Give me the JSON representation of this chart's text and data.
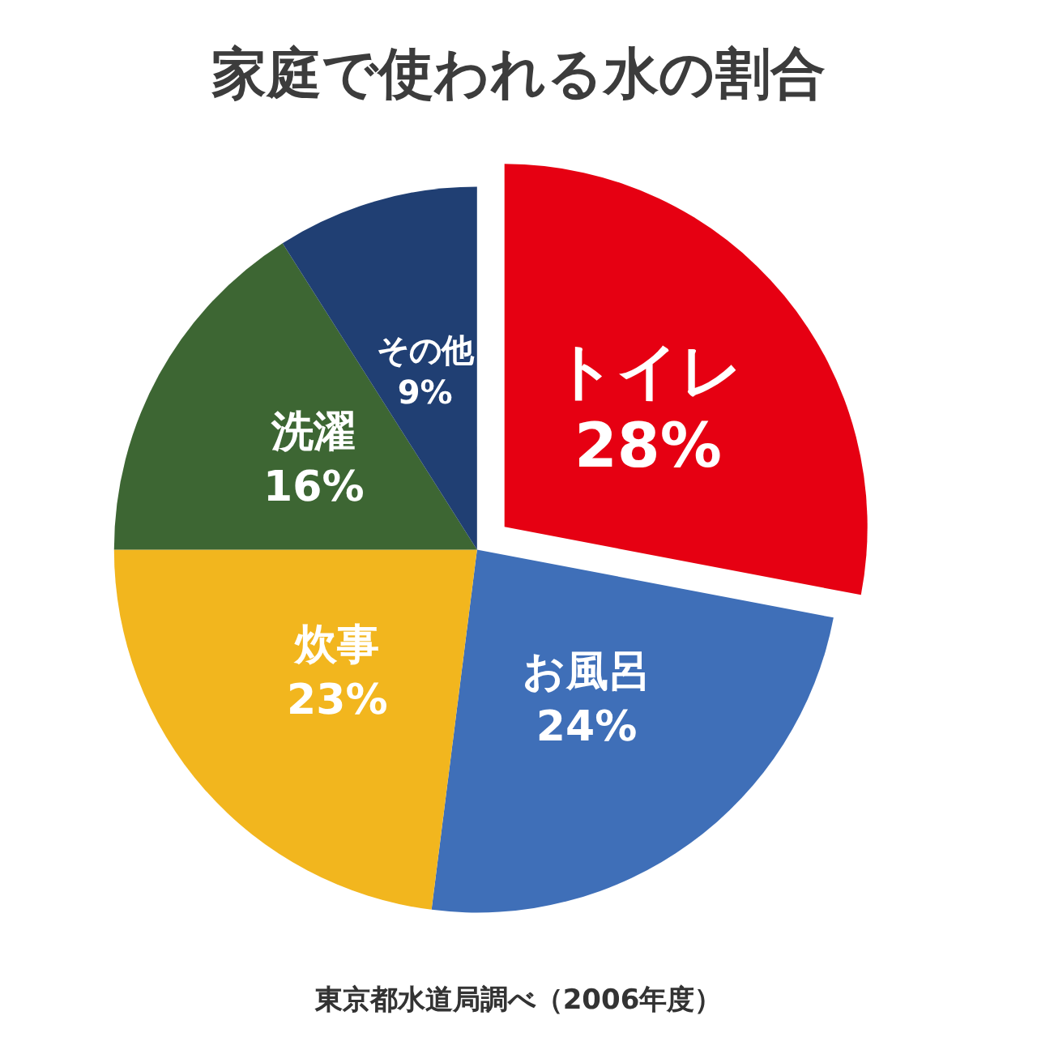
{
  "chart_data": {
    "type": "pie",
    "title": "家庭で使われる水の割合",
    "categories": [
      "トイレ",
      "お風呂",
      "炊事",
      "洗濯",
      "その他"
    ],
    "values": [
      28,
      24,
      23,
      16,
      9
    ],
    "value_labels": [
      "28%",
      "24%",
      "23%",
      "16%",
      "9%"
    ],
    "colors": [
      "#e60012",
      "#3f6fb8",
      "#f2b61e",
      "#3d6633",
      "#203f73"
    ],
    "legend": false,
    "annotations": [
      "東京都水道局調べ（2006年度）"
    ]
  }
}
